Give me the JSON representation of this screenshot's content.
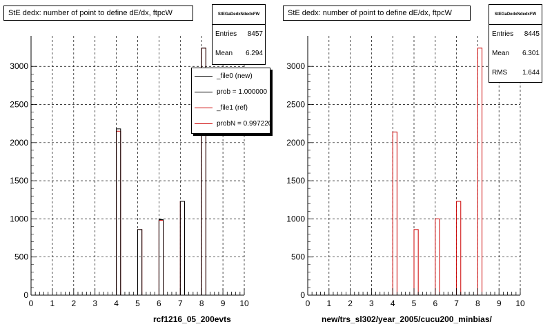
{
  "chart_data": [
    {
      "type": "bar",
      "title": "StE dedx: number of point to define dE/dx, ftpcW",
      "xlabel": "rcf1216_05_200evts",
      "ylabel": "",
      "xlim": [
        0,
        10
      ],
      "ylim": [
        0,
        3400
      ],
      "xticks": [
        "0",
        "1",
        "2",
        "3",
        "4",
        "5",
        "6",
        "7",
        "8",
        "9",
        "10"
      ],
      "yticks": [
        "0",
        "500",
        "1000",
        "1500",
        "2000",
        "2500",
        "3000"
      ],
      "grid": true,
      "bin_width": 0.2,
      "series": [
        {
          "name": "_file0 (new)",
          "color": "#000000",
          "x": [
            4.1,
            5.1,
            6.1,
            7.1,
            8.1
          ],
          "values": [
            2180,
            860,
            990,
            1230,
            3240
          ]
        },
        {
          "name": "_file1 (ref)",
          "color": "#cc0000",
          "x": [
            4.1,
            5.1,
            6.1,
            7.1,
            8.1
          ],
          "values": [
            2150,
            860,
            980,
            1230,
            3240
          ]
        }
      ],
      "stats": {
        "title": "StEGaDedxNdedxFW",
        "rows": [
          {
            "label": "Entries",
            "value": "8457"
          },
          {
            "label": "Mean",
            "value": "6.294"
          }
        ]
      },
      "legend": [
        {
          "label": "_file0 (new)",
          "color": "#000000"
        },
        {
          "label": "prob = 1.000000",
          "color": "#000000"
        },
        {
          "label": "_file1 (ref)",
          "color": "#cc0000"
        },
        {
          "label": "probN = 0.997220",
          "color": "#cc0000"
        }
      ]
    },
    {
      "type": "bar",
      "title": "StE dedx: number of point to define dE/dx, ftpcW",
      "xlabel": "new/trs_sl302/year_2005/cucu200_minbias/",
      "ylabel": "",
      "xlim": [
        0,
        10
      ],
      "ylim": [
        0,
        3400
      ],
      "xticks": [
        "0",
        "1",
        "2",
        "3",
        "4",
        "5",
        "6",
        "7",
        "8",
        "9",
        "10"
      ],
      "yticks": [
        "0",
        "500",
        "1000",
        "1500",
        "2000",
        "2500",
        "3000"
      ],
      "grid": true,
      "bin_width": 0.2,
      "series": [
        {
          "color": "#cc0000",
          "x": [
            4.1,
            5.1,
            6.1,
            7.1,
            8.1
          ],
          "values": [
            2140,
            860,
            1000,
            1230,
            3240
          ]
        }
      ],
      "stats": {
        "title": "StEGaDedxNdedxFW",
        "rows": [
          {
            "label": "Entries",
            "value": "8445"
          },
          {
            "label": "Mean",
            "value": "6.301"
          },
          {
            "label": "RMS",
            "value": "1.644"
          }
        ]
      }
    }
  ]
}
